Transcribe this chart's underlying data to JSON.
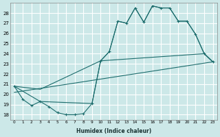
{
  "xlabel": "Humidex (Indice chaleur)",
  "bg_color": "#cce8e8",
  "grid_color": "#ffffff",
  "line_color": "#1a6b6b",
  "ylim": [
    17.5,
    29.0
  ],
  "xlim": [
    -0.5,
    23.5
  ],
  "yticks": [
    18,
    19,
    20,
    21,
    22,
    23,
    24,
    25,
    26,
    27,
    28
  ],
  "xticks": [
    0,
    1,
    2,
    3,
    4,
    5,
    6,
    7,
    8,
    9,
    10,
    11,
    12,
    13,
    14,
    15,
    16,
    17,
    18,
    19,
    20,
    21,
    22,
    23
  ],
  "xtick_labels": [
    "0",
    "1",
    "2",
    "3",
    "4",
    "5",
    "6",
    "7",
    "8",
    "9",
    "10",
    "11",
    "12",
    "13",
    "14",
    "15",
    "16",
    "17",
    "18",
    "19",
    "20",
    "21",
    "22",
    "23"
  ],
  "main_x": [
    0,
    1,
    2,
    3,
    4,
    5,
    6,
    7,
    8,
    9,
    10,
    11,
    12,
    13,
    14,
    15,
    16,
    17,
    18,
    19,
    20,
    21,
    22,
    23
  ],
  "main_y": [
    20.8,
    19.5,
    18.9,
    19.3,
    18.8,
    18.2,
    18.0,
    18.0,
    18.1,
    19.1,
    23.3,
    24.2,
    27.2,
    27.0,
    28.5,
    27.1,
    28.7,
    28.5,
    28.5,
    27.2,
    27.2,
    25.9,
    24.0,
    23.2
  ],
  "upper_x": [
    0,
    3,
    10,
    11,
    12,
    13,
    14,
    15,
    16,
    17,
    18,
    19,
    20,
    21,
    22,
    23
  ],
  "upper_y": [
    20.8,
    20.5,
    23.3,
    24.2,
    27.2,
    27.0,
    28.5,
    27.1,
    28.7,
    28.5,
    28.5,
    27.2,
    27.2,
    25.9,
    24.0,
    23.2
  ],
  "lower_x": [
    0,
    3,
    9,
    10,
    22,
    23
  ],
  "lower_y": [
    20.8,
    19.3,
    19.1,
    23.3,
    24.0,
    23.2
  ],
  "trend_x": [
    0,
    23
  ],
  "trend_y": [
    20.2,
    23.2
  ]
}
